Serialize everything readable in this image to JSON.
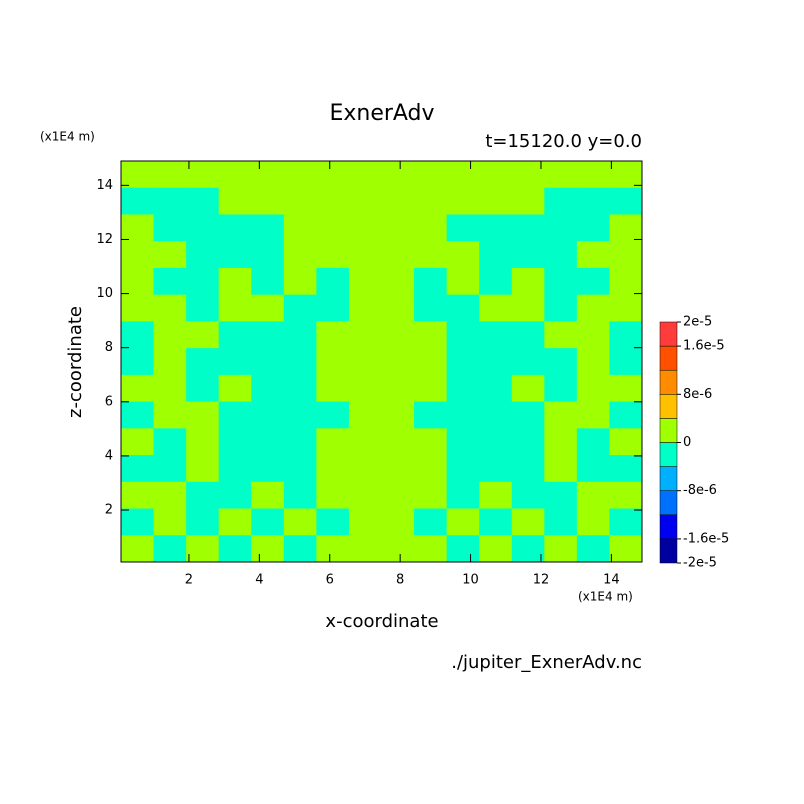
{
  "chart_data": {
    "type": "contour",
    "title": "ExnerAdv",
    "subtitle": "t=15120.0 y=0.0",
    "xlabel": "x-coordinate",
    "ylabel": "z-coordinate",
    "x_unit": "(x1E4 m)",
    "y_unit": "(x1E4 m)",
    "source": "./jupiter_ExnerAdv.nc",
    "xlim": [
      0.07,
      14.87
    ],
    "ylim": [
      0.08,
      14.9
    ],
    "xticks": [
      2,
      4,
      6,
      8,
      10,
      12,
      14
    ],
    "yticks": [
      2,
      4,
      6,
      8,
      10,
      12,
      14
    ],
    "levels": [
      -2e-05,
      -1.6e-05,
      -1.2e-05,
      -8e-06,
      -4e-06,
      0,
      4e-06,
      8e-06,
      1.2e-05,
      1.6e-05,
      2e-05
    ],
    "colors": [
      "#0000a0",
      "#0000f0",
      "#0070ff",
      "#00b0ff",
      "#00ffc8",
      "#a0ff00",
      "#ffc000",
      "#ff8c00",
      "#ff5000",
      "#ff3c3c"
    ],
    "colorbar_ticks": [
      {
        "value": 2e-05,
        "label": "2e-5"
      },
      {
        "value": 1.6e-05,
        "label": "1.6e-5"
      },
      {
        "value": 8e-06,
        "label": "8e-6"
      },
      0,
      {
        "value": -8e-06,
        "label": "-8e-6"
      },
      {
        "value": -1.6e-05,
        "label": "-1.6e-5"
      },
      {
        "value": -2e-05,
        "label": "-2e-5"
      }
    ],
    "z": [
      [
        2e-06,
        2e-06,
        2e-06,
        2e-06,
        2e-06,
        2e-06,
        2e-06,
        2e-06,
        2e-06,
        2e-06,
        2e-06,
        2e-06,
        2e-06,
        2e-06,
        2e-06,
        2e-06
      ],
      [
        -2e-06,
        -2e-06,
        -2e-06,
        2e-06,
        2e-06,
        2e-06,
        2e-06,
        2e-06,
        2e-06,
        2e-06,
        2e-06,
        2e-06,
        2e-06,
        -2e-06,
        -2e-06,
        -2e-06
      ],
      [
        2e-06,
        -2e-06,
        -2e-06,
        -2e-06,
        -2e-06,
        2e-06,
        2e-06,
        2e-06,
        2e-06,
        2e-06,
        -2e-06,
        -2e-06,
        -2e-06,
        -2e-06,
        -2e-06,
        2e-06
      ],
      [
        2e-06,
        2e-06,
        -2e-06,
        -2e-06,
        -2e-06,
        2e-06,
        2e-06,
        2e-06,
        2e-06,
        2e-06,
        2e-06,
        -2e-06,
        -2e-06,
        -2e-06,
        2e-06,
        2e-06
      ],
      [
        2e-06,
        -2e-06,
        -2e-06,
        2e-06,
        -2e-06,
        2e-06,
        -2e-06,
        2e-06,
        2e-06,
        -2e-06,
        2e-06,
        -2e-06,
        2e-06,
        -2e-06,
        -2e-06,
        2e-06
      ],
      [
        2e-06,
        2e-06,
        -2e-06,
        2e-06,
        2e-06,
        -2e-06,
        -2e-06,
        2e-06,
        2e-06,
        -2e-06,
        -2e-06,
        2e-06,
        2e-06,
        -2e-06,
        2e-06,
        2e-06
      ],
      [
        -2e-06,
        2e-06,
        2e-06,
        -2e-06,
        -2e-06,
        -2e-06,
        2e-06,
        2e-06,
        2e-06,
        2e-06,
        -2e-06,
        -2e-06,
        -2e-06,
        2e-06,
        2e-06,
        -2e-06
      ],
      [
        -2e-06,
        2e-06,
        -2e-06,
        -2e-06,
        -2e-06,
        -2e-06,
        2e-06,
        2e-06,
        2e-06,
        2e-06,
        -2e-06,
        -2e-06,
        -2e-06,
        -2e-06,
        2e-06,
        -2e-06
      ],
      [
        2e-06,
        2e-06,
        -2e-06,
        2e-06,
        -2e-06,
        -2e-06,
        2e-06,
        2e-06,
        2e-06,
        2e-06,
        -2e-06,
        -2e-06,
        2e-06,
        -2e-06,
        2e-06,
        2e-06
      ],
      [
        -2e-06,
        2e-06,
        2e-06,
        -2e-06,
        -2e-06,
        -2e-06,
        -2e-06,
        2e-06,
        2e-06,
        -2e-06,
        -2e-06,
        -2e-06,
        -2e-06,
        2e-06,
        2e-06,
        -2e-06
      ],
      [
        2e-06,
        -2e-06,
        2e-06,
        -2e-06,
        -2e-06,
        -2e-06,
        2e-06,
        2e-06,
        2e-06,
        2e-06,
        -2e-06,
        -2e-06,
        -2e-06,
        2e-06,
        -2e-06,
        2e-06
      ],
      [
        -2e-06,
        -2e-06,
        2e-06,
        -2e-06,
        -2e-06,
        -2e-06,
        2e-06,
        2e-06,
        2e-06,
        2e-06,
        -2e-06,
        -2e-06,
        -2e-06,
        2e-06,
        -2e-06,
        -2e-06
      ],
      [
        2e-06,
        2e-06,
        -2e-06,
        -2e-06,
        2e-06,
        -2e-06,
        2e-06,
        2e-06,
        2e-06,
        2e-06,
        -2e-06,
        2e-06,
        -2e-06,
        -2e-06,
        2e-06,
        2e-06
      ],
      [
        -2e-06,
        2e-06,
        -2e-06,
        2e-06,
        -2e-06,
        2e-06,
        -2e-06,
        2e-06,
        2e-06,
        -2e-06,
        2e-06,
        -2e-06,
        2e-06,
        -2e-06,
        2e-06,
        -2e-06
      ],
      [
        2e-06,
        -2e-06,
        2e-06,
        -2e-06,
        2e-06,
        -2e-06,
        2e-06,
        2e-06,
        2e-06,
        2e-06,
        -2e-06,
        2e-06,
        -2e-06,
        2e-06,
        -2e-06,
        2e-06
      ]
    ]
  }
}
